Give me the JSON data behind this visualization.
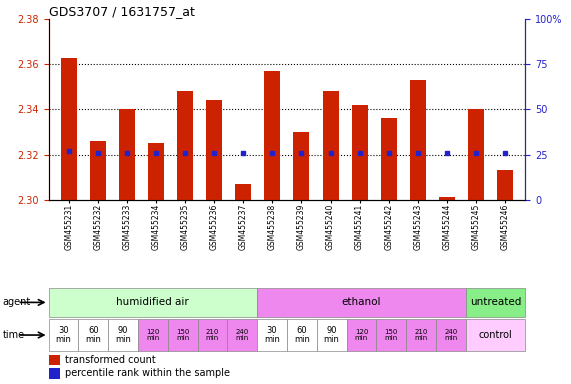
{
  "title": "GDS3707 / 1631757_at",
  "samples": [
    "GSM455231",
    "GSM455232",
    "GSM455233",
    "GSM455234",
    "GSM455235",
    "GSM455236",
    "GSM455237",
    "GSM455238",
    "GSM455239",
    "GSM455240",
    "GSM455241",
    "GSM455242",
    "GSM455243",
    "GSM455244",
    "GSM455245",
    "GSM455246"
  ],
  "bar_values": [
    2.363,
    2.326,
    2.34,
    2.325,
    2.348,
    2.344,
    2.307,
    2.357,
    2.33,
    2.348,
    2.342,
    2.336,
    2.353,
    2.301,
    2.34,
    2.313
  ],
  "percentile_values": [
    27,
    26,
    26,
    26,
    26,
    26,
    26,
    26,
    26,
    26,
    26,
    26,
    26,
    26,
    26,
    26
  ],
  "ylim_left": [
    2.3,
    2.38
  ],
  "ylim_right": [
    0,
    100
  ],
  "yticks_left": [
    2.3,
    2.32,
    2.34,
    2.36,
    2.38
  ],
  "yticks_right": [
    0,
    25,
    50,
    75,
    100
  ],
  "bar_color": "#cc2200",
  "dot_color": "#2222cc",
  "bar_baseline": 2.3,
  "agent_groups": [
    {
      "label": "humidified air",
      "start": 0,
      "end": 7,
      "color": "#ccffcc"
    },
    {
      "label": "ethanol",
      "start": 7,
      "end": 14,
      "color": "#ee88ee"
    },
    {
      "label": "untreated",
      "start": 14,
      "end": 16,
      "color": "#88ee88"
    }
  ],
  "time_labels": [
    "30\nmin",
    "60\nmin",
    "90\nmin",
    "120\nmin",
    "150\nmin",
    "210\nmin",
    "240\nmin",
    "30\nmin",
    "60\nmin",
    "90\nmin",
    "120\nmin",
    "150\nmin",
    "210\nmin",
    "240\nmin"
  ],
  "time_colors_humidified": [
    "#ffffff",
    "#ffffff",
    "#ffffff",
    "#ee88ee",
    "#ee88ee",
    "#ee88ee",
    "#ee88ee"
  ],
  "time_colors_ethanol": [
    "#ffffff",
    "#ffffff",
    "#ffffff",
    "#ee88ee",
    "#ee88ee",
    "#ee88ee",
    "#ee88ee"
  ],
  "control_label": "control",
  "control_color": "#ffccff",
  "legend_bar_label": "transformed count",
  "legend_dot_label": "percentile rank within the sample",
  "dotted_lines": [
    2.32,
    2.34,
    2.36
  ],
  "background_color": "#ffffff",
  "tick_color_left": "#cc2200",
  "tick_color_right": "#2222cc"
}
